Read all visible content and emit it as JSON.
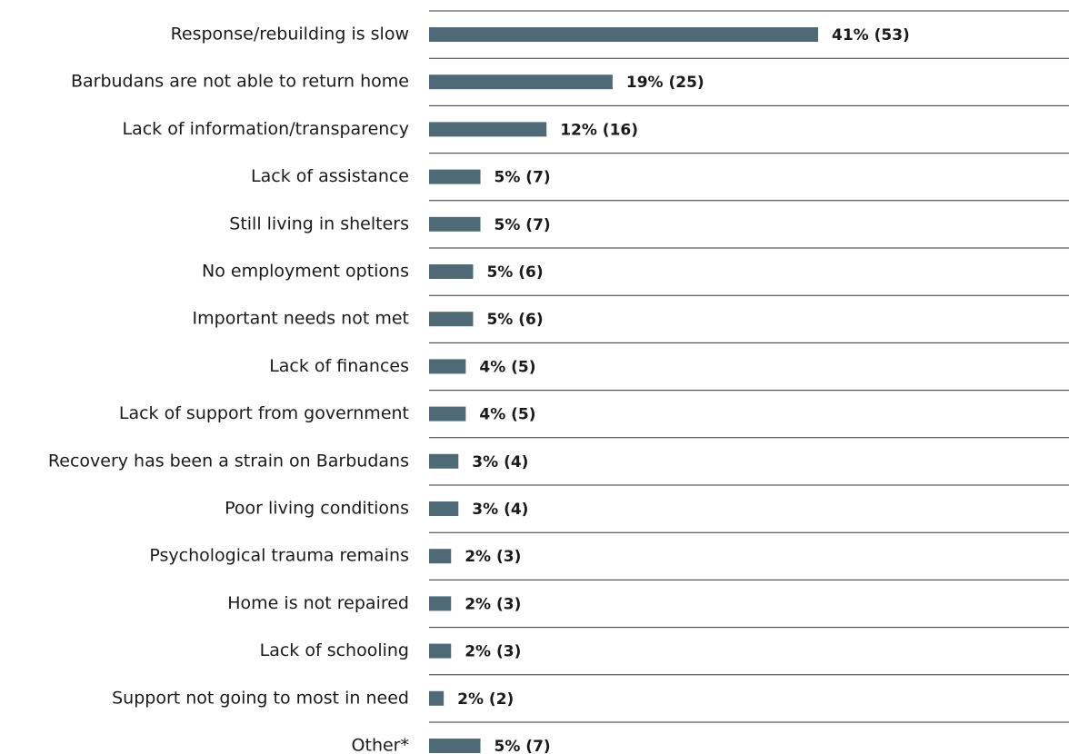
{
  "chart_data": {
    "type": "bar",
    "orientation": "horizontal",
    "color": "#4e6a77",
    "categories": [
      "Response/rebuilding is slow",
      "Barbudans are not able to return home",
      "Lack of information/transparency",
      "Lack of assistance",
      "Still living in shelters",
      "No employment options",
      "Important needs not met",
      "Lack of finances",
      "Lack of support from government",
      "Recovery has been a strain on Barbudans",
      "Poor living conditions",
      "Psychological trauma remains",
      "Home is not repaired",
      "Lack of schooling",
      "Support not going to most in need",
      "Other*"
    ],
    "values": [
      53,
      25,
      16,
      7,
      7,
      6,
      6,
      5,
      5,
      4,
      4,
      3,
      3,
      3,
      2,
      7
    ],
    "value_labels": [
      "41% (53)",
      "19% (25)",
      "12% (16)",
      "5% (7)",
      "5% (7)",
      "5% (6)",
      "5% (6)",
      "4% (5)",
      "4% (5)",
      "3% (4)",
      "3% (4)",
      "2% (3)",
      "2% (3)",
      "2% (3)",
      "2% (2)",
      "5% (7)"
    ]
  }
}
